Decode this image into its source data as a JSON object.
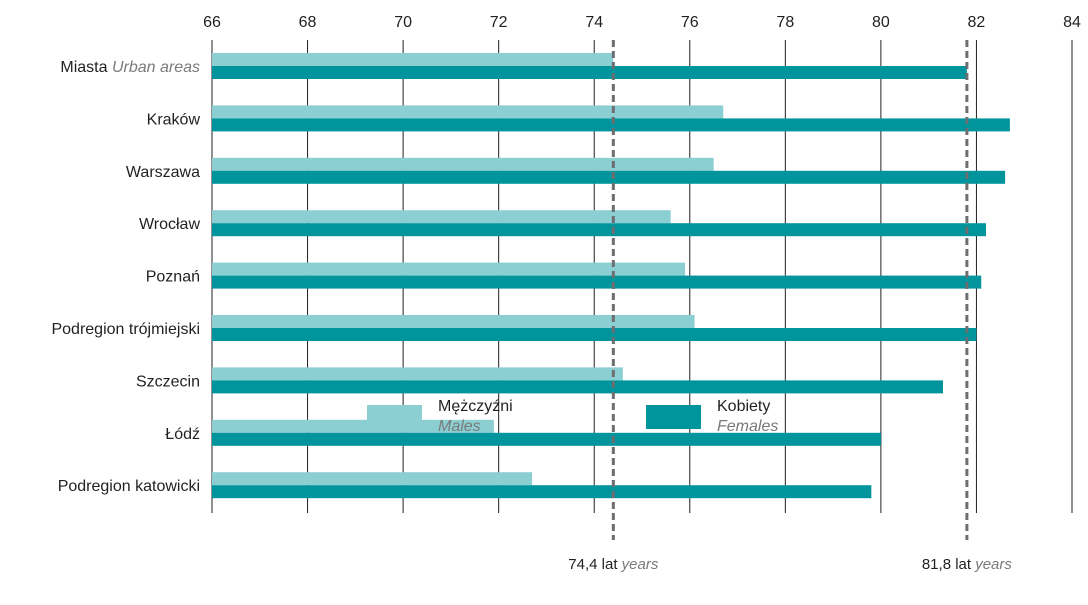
{
  "chart_data": {
    "type": "bar",
    "orientation": "horizontal",
    "xlim": [
      66,
      84
    ],
    "ticks": [
      66,
      68,
      70,
      72,
      74,
      76,
      78,
      80,
      82,
      84
    ],
    "categories": [
      {
        "pl": "Miasta",
        "en": "Urban areas"
      },
      {
        "pl": "Kraków",
        "en": ""
      },
      {
        "pl": "Warszawa",
        "en": ""
      },
      {
        "pl": "Wrocław",
        "en": ""
      },
      {
        "pl": "Poznań",
        "en": ""
      },
      {
        "pl": "Podregion trójmiejski",
        "en": ""
      },
      {
        "pl": "Szczecin",
        "en": ""
      },
      {
        "pl": "Łódź",
        "en": ""
      },
      {
        "pl": "Podregion katowicki",
        "en": ""
      }
    ],
    "series": [
      {
        "name": "Mężczyźni",
        "name_en": "Males",
        "color": "#8ccfd2",
        "values": [
          74.4,
          76.7,
          76.5,
          75.6,
          75.9,
          76.1,
          74.6,
          71.9,
          72.7
        ]
      },
      {
        "name": "Kobiety",
        "name_en": "Females",
        "color": "#00959c",
        "values": [
          81.8,
          82.7,
          82.6,
          82.2,
          82.1,
          82.0,
          81.3,
          80.0,
          79.8
        ]
      }
    ],
    "reference_lines": [
      {
        "value": 74.4,
        "label": "74,4 lat",
        "label_en": "years"
      },
      {
        "value": 81.8,
        "label": "81,8 lat",
        "label_en": "years"
      }
    ],
    "legend_position": "bottom",
    "grid": true
  }
}
